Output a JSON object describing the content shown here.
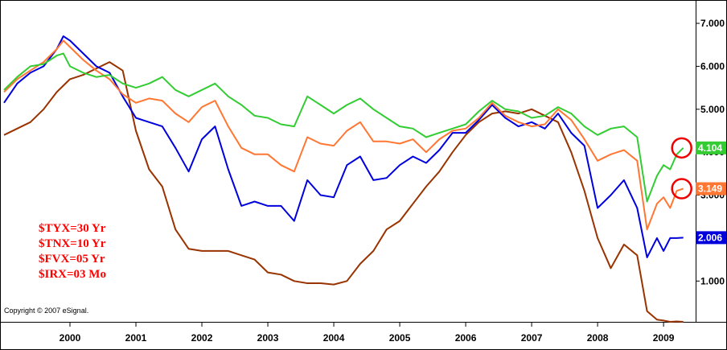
{
  "chart_data": {
    "type": "line",
    "title": "",
    "xlabel": "",
    "ylabel": "",
    "ylim": [
      0.05,
      7.45
    ],
    "xlim": [
      1999.0,
      2009.45
    ],
    "grid": false,
    "legend_position": "bottom-left",
    "x_ticks": [
      2000,
      2001,
      2002,
      2003,
      2004,
      2005,
      2006,
      2007,
      2008,
      2009
    ],
    "x_tick_labels": [
      "2000",
      "2001",
      "2002",
      "2003",
      "2004",
      "2005",
      "2006",
      "2007",
      "2008",
      "2009"
    ],
    "y_ticks": [
      1,
      2,
      3,
      4,
      5,
      6,
      7
    ],
    "y_tick_labels": [
      "1.000",
      "2.000",
      "3.000",
      "4.000",
      "5.000",
      "6.000",
      "7.000"
    ],
    "legend": [
      "$TYX=30 Yr",
      "$TNX=10 Yr",
      "$FVX=05 Yr",
      "$IRX=03 Mo"
    ],
    "copyright": "Copyright © 2007 eSignal.",
    "highlight_circles": [
      "$TYX",
      "$TNX"
    ],
    "series": [
      {
        "name": "$TYX=30 Yr",
        "color": "#33cc33",
        "last_value": "4.104",
        "points": [
          [
            1999.0,
            5.45
          ],
          [
            1999.2,
            5.75
          ],
          [
            1999.4,
            6.0
          ],
          [
            1999.6,
            6.05
          ],
          [
            1999.8,
            6.25
          ],
          [
            1999.9,
            6.3
          ],
          [
            2000.0,
            6.0
          ],
          [
            2000.2,
            5.85
          ],
          [
            2000.4,
            5.75
          ],
          [
            2000.6,
            5.8
          ],
          [
            2000.8,
            5.6
          ],
          [
            2001.0,
            5.5
          ],
          [
            2001.2,
            5.6
          ],
          [
            2001.4,
            5.75
          ],
          [
            2001.6,
            5.45
          ],
          [
            2001.8,
            5.3
          ],
          [
            2002.0,
            5.45
          ],
          [
            2002.2,
            5.6
          ],
          [
            2002.4,
            5.3
          ],
          [
            2002.6,
            5.1
          ],
          [
            2002.8,
            4.85
          ],
          [
            2003.0,
            4.8
          ],
          [
            2003.2,
            4.65
          ],
          [
            2003.4,
            4.6
          ],
          [
            2003.6,
            5.3
          ],
          [
            2003.8,
            5.1
          ],
          [
            2004.0,
            4.9
          ],
          [
            2004.2,
            5.1
          ],
          [
            2004.4,
            5.25
          ],
          [
            2004.6,
            5.0
          ],
          [
            2004.8,
            4.8
          ],
          [
            2005.0,
            4.6
          ],
          [
            2005.2,
            4.55
          ],
          [
            2005.4,
            4.35
          ],
          [
            2005.6,
            4.45
          ],
          [
            2005.8,
            4.55
          ],
          [
            2006.0,
            4.65
          ],
          [
            2006.2,
            4.95
          ],
          [
            2006.4,
            5.2
          ],
          [
            2006.6,
            5.0
          ],
          [
            2006.8,
            4.95
          ],
          [
            2007.0,
            4.8
          ],
          [
            2007.2,
            4.85
          ],
          [
            2007.4,
            5.05
          ],
          [
            2007.6,
            4.9
          ],
          [
            2007.8,
            4.6
          ],
          [
            2008.0,
            4.4
          ],
          [
            2008.2,
            4.55
          ],
          [
            2008.4,
            4.6
          ],
          [
            2008.6,
            4.35
          ],
          [
            2008.75,
            2.85
          ],
          [
            2008.9,
            3.45
          ],
          [
            2009.0,
            3.7
          ],
          [
            2009.1,
            3.6
          ],
          [
            2009.2,
            3.95
          ],
          [
            2009.3,
            4.1
          ]
        ]
      },
      {
        "name": "$TNX=10 Yr",
        "color": "#ff7733",
        "last_value": "3.149",
        "points": [
          [
            1999.0,
            5.4
          ],
          [
            1999.2,
            5.7
          ],
          [
            1999.4,
            5.9
          ],
          [
            1999.6,
            6.1
          ],
          [
            1999.8,
            6.4
          ],
          [
            1999.9,
            6.6
          ],
          [
            2000.0,
            6.45
          ],
          [
            2000.2,
            6.15
          ],
          [
            2000.4,
            5.9
          ],
          [
            2000.6,
            5.7
          ],
          [
            2000.8,
            5.35
          ],
          [
            2001.0,
            5.15
          ],
          [
            2001.2,
            5.25
          ],
          [
            2001.4,
            5.2
          ],
          [
            2001.6,
            4.9
          ],
          [
            2001.8,
            4.7
          ],
          [
            2002.0,
            5.05
          ],
          [
            2002.2,
            5.2
          ],
          [
            2002.4,
            4.6
          ],
          [
            2002.6,
            4.1
          ],
          [
            2002.8,
            3.95
          ],
          [
            2003.0,
            3.95
          ],
          [
            2003.2,
            3.7
          ],
          [
            2003.4,
            3.55
          ],
          [
            2003.6,
            4.35
          ],
          [
            2003.8,
            4.2
          ],
          [
            2004.0,
            4.15
          ],
          [
            2004.2,
            4.5
          ],
          [
            2004.4,
            4.7
          ],
          [
            2004.6,
            4.25
          ],
          [
            2004.8,
            4.25
          ],
          [
            2005.0,
            4.2
          ],
          [
            2005.2,
            4.3
          ],
          [
            2005.4,
            4.0
          ],
          [
            2005.6,
            4.3
          ],
          [
            2005.8,
            4.5
          ],
          [
            2006.0,
            4.55
          ],
          [
            2006.2,
            4.8
          ],
          [
            2006.4,
            5.15
          ],
          [
            2006.6,
            4.85
          ],
          [
            2006.8,
            4.7
          ],
          [
            2007.0,
            4.6
          ],
          [
            2007.2,
            4.65
          ],
          [
            2007.4,
            5.0
          ],
          [
            2007.6,
            4.75
          ],
          [
            2007.8,
            4.3
          ],
          [
            2008.0,
            3.8
          ],
          [
            2008.2,
            3.95
          ],
          [
            2008.4,
            4.05
          ],
          [
            2008.6,
            3.8
          ],
          [
            2008.75,
            2.2
          ],
          [
            2008.9,
            2.8
          ],
          [
            2009.0,
            2.95
          ],
          [
            2009.1,
            2.7
          ],
          [
            2009.2,
            3.1
          ],
          [
            2009.3,
            3.15
          ]
        ]
      },
      {
        "name": "$FVX=05 Yr",
        "color": "#0000dd",
        "last_value": "2.006",
        "points": [
          [
            1999.0,
            5.15
          ],
          [
            1999.2,
            5.6
          ],
          [
            1999.4,
            5.85
          ],
          [
            1999.6,
            6.0
          ],
          [
            1999.8,
            6.4
          ],
          [
            1999.9,
            6.7
          ],
          [
            2000.0,
            6.6
          ],
          [
            2000.2,
            6.3
          ],
          [
            2000.4,
            6.0
          ],
          [
            2000.6,
            5.85
          ],
          [
            2000.8,
            5.3
          ],
          [
            2001.0,
            4.8
          ],
          [
            2001.2,
            4.7
          ],
          [
            2001.4,
            4.6
          ],
          [
            2001.6,
            4.1
          ],
          [
            2001.8,
            3.55
          ],
          [
            2002.0,
            4.3
          ],
          [
            2002.2,
            4.6
          ],
          [
            2002.4,
            3.6
          ],
          [
            2002.6,
            2.75
          ],
          [
            2002.8,
            2.85
          ],
          [
            2003.0,
            2.75
          ],
          [
            2003.2,
            2.75
          ],
          [
            2003.4,
            2.4
          ],
          [
            2003.6,
            3.35
          ],
          [
            2003.8,
            3.0
          ],
          [
            2004.0,
            2.95
          ],
          [
            2004.2,
            3.7
          ],
          [
            2004.4,
            3.9
          ],
          [
            2004.6,
            3.35
          ],
          [
            2004.8,
            3.4
          ],
          [
            2005.0,
            3.7
          ],
          [
            2005.2,
            3.9
          ],
          [
            2005.4,
            3.75
          ],
          [
            2005.6,
            4.05
          ],
          [
            2005.8,
            4.45
          ],
          [
            2006.0,
            4.45
          ],
          [
            2006.2,
            4.75
          ],
          [
            2006.4,
            5.1
          ],
          [
            2006.6,
            4.8
          ],
          [
            2006.8,
            4.6
          ],
          [
            2007.0,
            4.7
          ],
          [
            2007.2,
            4.55
          ],
          [
            2007.4,
            4.9
          ],
          [
            2007.6,
            4.45
          ],
          [
            2007.8,
            4.15
          ],
          [
            2008.0,
            2.7
          ],
          [
            2008.2,
            3.0
          ],
          [
            2008.4,
            3.35
          ],
          [
            2008.6,
            2.7
          ],
          [
            2008.75,
            1.55
          ],
          [
            2008.9,
            2.0
          ],
          [
            2009.0,
            1.7
          ],
          [
            2009.1,
            2.0
          ],
          [
            2009.2,
            2.0
          ],
          [
            2009.3,
            2.01
          ]
        ]
      },
      {
        "name": "$IRX=03 Mo",
        "color": "#993300",
        "last_value": "",
        "points": [
          [
            1999.0,
            4.4
          ],
          [
            1999.2,
            4.55
          ],
          [
            1999.4,
            4.7
          ],
          [
            1999.6,
            5.0
          ],
          [
            1999.8,
            5.4
          ],
          [
            2000.0,
            5.7
          ],
          [
            2000.2,
            5.8
          ],
          [
            2000.4,
            5.95
          ],
          [
            2000.6,
            6.1
          ],
          [
            2000.8,
            5.9
          ],
          [
            2001.0,
            4.5
          ],
          [
            2001.2,
            3.6
          ],
          [
            2001.4,
            3.2
          ],
          [
            2001.6,
            2.2
          ],
          [
            2001.8,
            1.75
          ],
          [
            2002.0,
            1.7
          ],
          [
            2002.2,
            1.7
          ],
          [
            2002.4,
            1.7
          ],
          [
            2002.6,
            1.6
          ],
          [
            2002.8,
            1.5
          ],
          [
            2003.0,
            1.2
          ],
          [
            2003.2,
            1.15
          ],
          [
            2003.4,
            1.0
          ],
          [
            2003.6,
            0.95
          ],
          [
            2003.8,
            0.95
          ],
          [
            2004.0,
            0.92
          ],
          [
            2004.2,
            1.0
          ],
          [
            2004.4,
            1.4
          ],
          [
            2004.6,
            1.7
          ],
          [
            2004.8,
            2.2
          ],
          [
            2005.0,
            2.4
          ],
          [
            2005.2,
            2.8
          ],
          [
            2005.4,
            3.2
          ],
          [
            2005.6,
            3.55
          ],
          [
            2005.8,
            4.0
          ],
          [
            2006.0,
            4.4
          ],
          [
            2006.2,
            4.7
          ],
          [
            2006.4,
            4.9
          ],
          [
            2006.6,
            4.95
          ],
          [
            2006.8,
            4.9
          ],
          [
            2007.0,
            5.0
          ],
          [
            2007.2,
            4.85
          ],
          [
            2007.4,
            4.7
          ],
          [
            2007.6,
            4.0
          ],
          [
            2007.8,
            3.1
          ],
          [
            2008.0,
            2.0
          ],
          [
            2008.2,
            1.3
          ],
          [
            2008.4,
            1.85
          ],
          [
            2008.6,
            1.6
          ],
          [
            2008.75,
            0.3
          ],
          [
            2008.9,
            0.1
          ],
          [
            2009.0,
            0.08
          ],
          [
            2009.1,
            0.05
          ],
          [
            2009.2,
            0.06
          ],
          [
            2009.3,
            0.05
          ]
        ]
      }
    ]
  }
}
